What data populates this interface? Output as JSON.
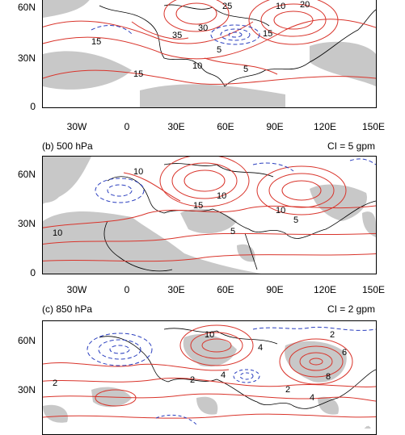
{
  "panel_a": {
    "lat_ticks": [
      "60N",
      "30N",
      "0"
    ],
    "lon_ticks": [
      "30W",
      "0",
      "30E",
      "60E",
      "90E",
      "120E",
      "150E"
    ],
    "contour_labels": [
      "15",
      "35",
      "30",
      "25",
      "10",
      "20",
      "15",
      "5",
      "15",
      "10",
      "5"
    ]
  },
  "panel_b": {
    "title": "(b) 500 hPa",
    "ci": "CI = 5 gpm",
    "lat_ticks": [
      "60N",
      "30N",
      "0"
    ],
    "lon_ticks": [
      "30W",
      "0",
      "30E",
      "60E",
      "90E",
      "120E",
      "150E"
    ],
    "contour_labels": [
      "10",
      "10",
      "15",
      "10",
      "5",
      "10",
      "5"
    ]
  },
  "panel_c": {
    "title": "(c) 850 hPa",
    "ci": "CI = 2 gpm",
    "lat_ticks": [
      "60N",
      "30N"
    ],
    "contour_labels": [
      "10",
      "4",
      "2",
      "6",
      "2",
      "2",
      "4",
      "8",
      "2",
      "4"
    ]
  },
  "colors": {
    "positive_contour": "#d9342b",
    "negative_contour": "#2b3fbf",
    "shading": "#c8c8c8",
    "coast": "#000000"
  }
}
